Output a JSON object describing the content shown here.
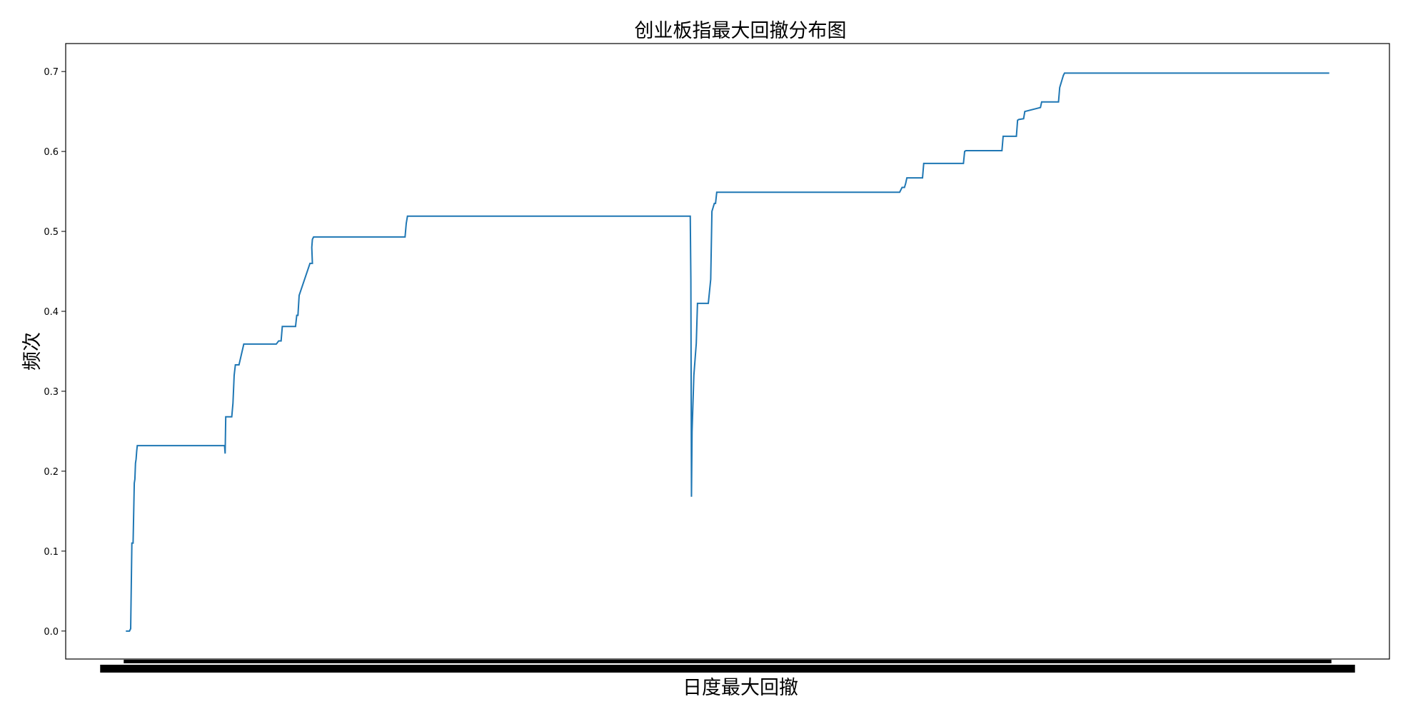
{
  "chart_data": {
    "type": "line",
    "title": "创业板指最大回撤分布图",
    "xlabel": "日度最大回撤",
    "ylabel": "频次",
    "ylim": [
      -0.035,
      0.735
    ],
    "xlim": [
      -0.05,
      1.05
    ],
    "y_ticks": [
      0.0,
      0.1,
      0.2,
      0.3,
      0.4,
      0.5,
      0.6,
      0.7
    ],
    "y_tick_labels": [
      "0.0",
      "0.1",
      "0.2",
      "0.3",
      "0.4",
      "0.5",
      "0.6",
      "0.7"
    ],
    "x_tick_labels_note": "x tick labels are too dense to read (overlapping)",
    "grid": false,
    "line_color": "#1f77b4",
    "series": [
      {
        "x": [
          0.0,
          0.003,
          0.004,
          0.005,
          0.006,
          0.007,
          0.0075,
          0.008,
          0.0085,
          0.009,
          0.0095,
          0.01,
          0.011,
          0.082,
          0.0825,
          0.083,
          0.084,
          0.088,
          0.089,
          0.09,
          0.091,
          0.093,
          0.094,
          0.098,
          0.1,
          0.125,
          0.127,
          0.129,
          0.13,
          0.141,
          0.142,
          0.143,
          0.144,
          0.153,
          0.154,
          0.155,
          0.1545,
          0.155,
          0.156,
          0.158,
          0.159,
          0.232,
          0.233,
          0.234,
          0.469,
          0.4695,
          0.47,
          0.4705,
          0.472,
          0.4725,
          0.474,
          0.475,
          0.483,
          0.484,
          0.486,
          0.487,
          0.488,
          0.489,
          0.49,
          0.491,
          0.643,
          0.645,
          0.647,
          0.648,
          0.649,
          0.662,
          0.663,
          0.696,
          0.697,
          0.698,
          0.728,
          0.729,
          0.74,
          0.741,
          0.742,
          0.746,
          0.747,
          0.76,
          0.761,
          0.762,
          0.775,
          0.776,
          0.777,
          0.778,
          0.779,
          0.78,
          0.781,
          1.0
        ],
        "y": [
          0.0,
          0.0,
          0.003,
          0.11,
          0.11,
          0.185,
          0.19,
          0.21,
          0.215,
          0.225,
          0.232,
          0.232,
          0.232,
          0.232,
          0.222,
          0.268,
          0.268,
          0.268,
          0.285,
          0.32,
          0.333,
          0.333,
          0.333,
          0.359,
          0.359,
          0.359,
          0.363,
          0.363,
          0.381,
          0.381,
          0.395,
          0.395,
          0.42,
          0.46,
          0.46,
          0.46,
          0.48,
          0.49,
          0.493,
          0.493,
          0.493,
          0.493,
          0.51,
          0.519,
          0.519,
          0.44,
          0.168,
          0.25,
          0.32,
          0.33,
          0.36,
          0.41,
          0.41,
          0.41,
          0.44,
          0.525,
          0.53,
          0.535,
          0.535,
          0.549,
          0.549,
          0.555,
          0.555,
          0.56,
          0.567,
          0.567,
          0.585,
          0.585,
          0.6,
          0.601,
          0.601,
          0.619,
          0.619,
          0.639,
          0.64,
          0.641,
          0.65,
          0.655,
          0.662,
          0.662,
          0.662,
          0.68,
          0.685,
          0.69,
          0.695,
          0.698,
          0.698,
          0.698
        ]
      }
    ]
  }
}
